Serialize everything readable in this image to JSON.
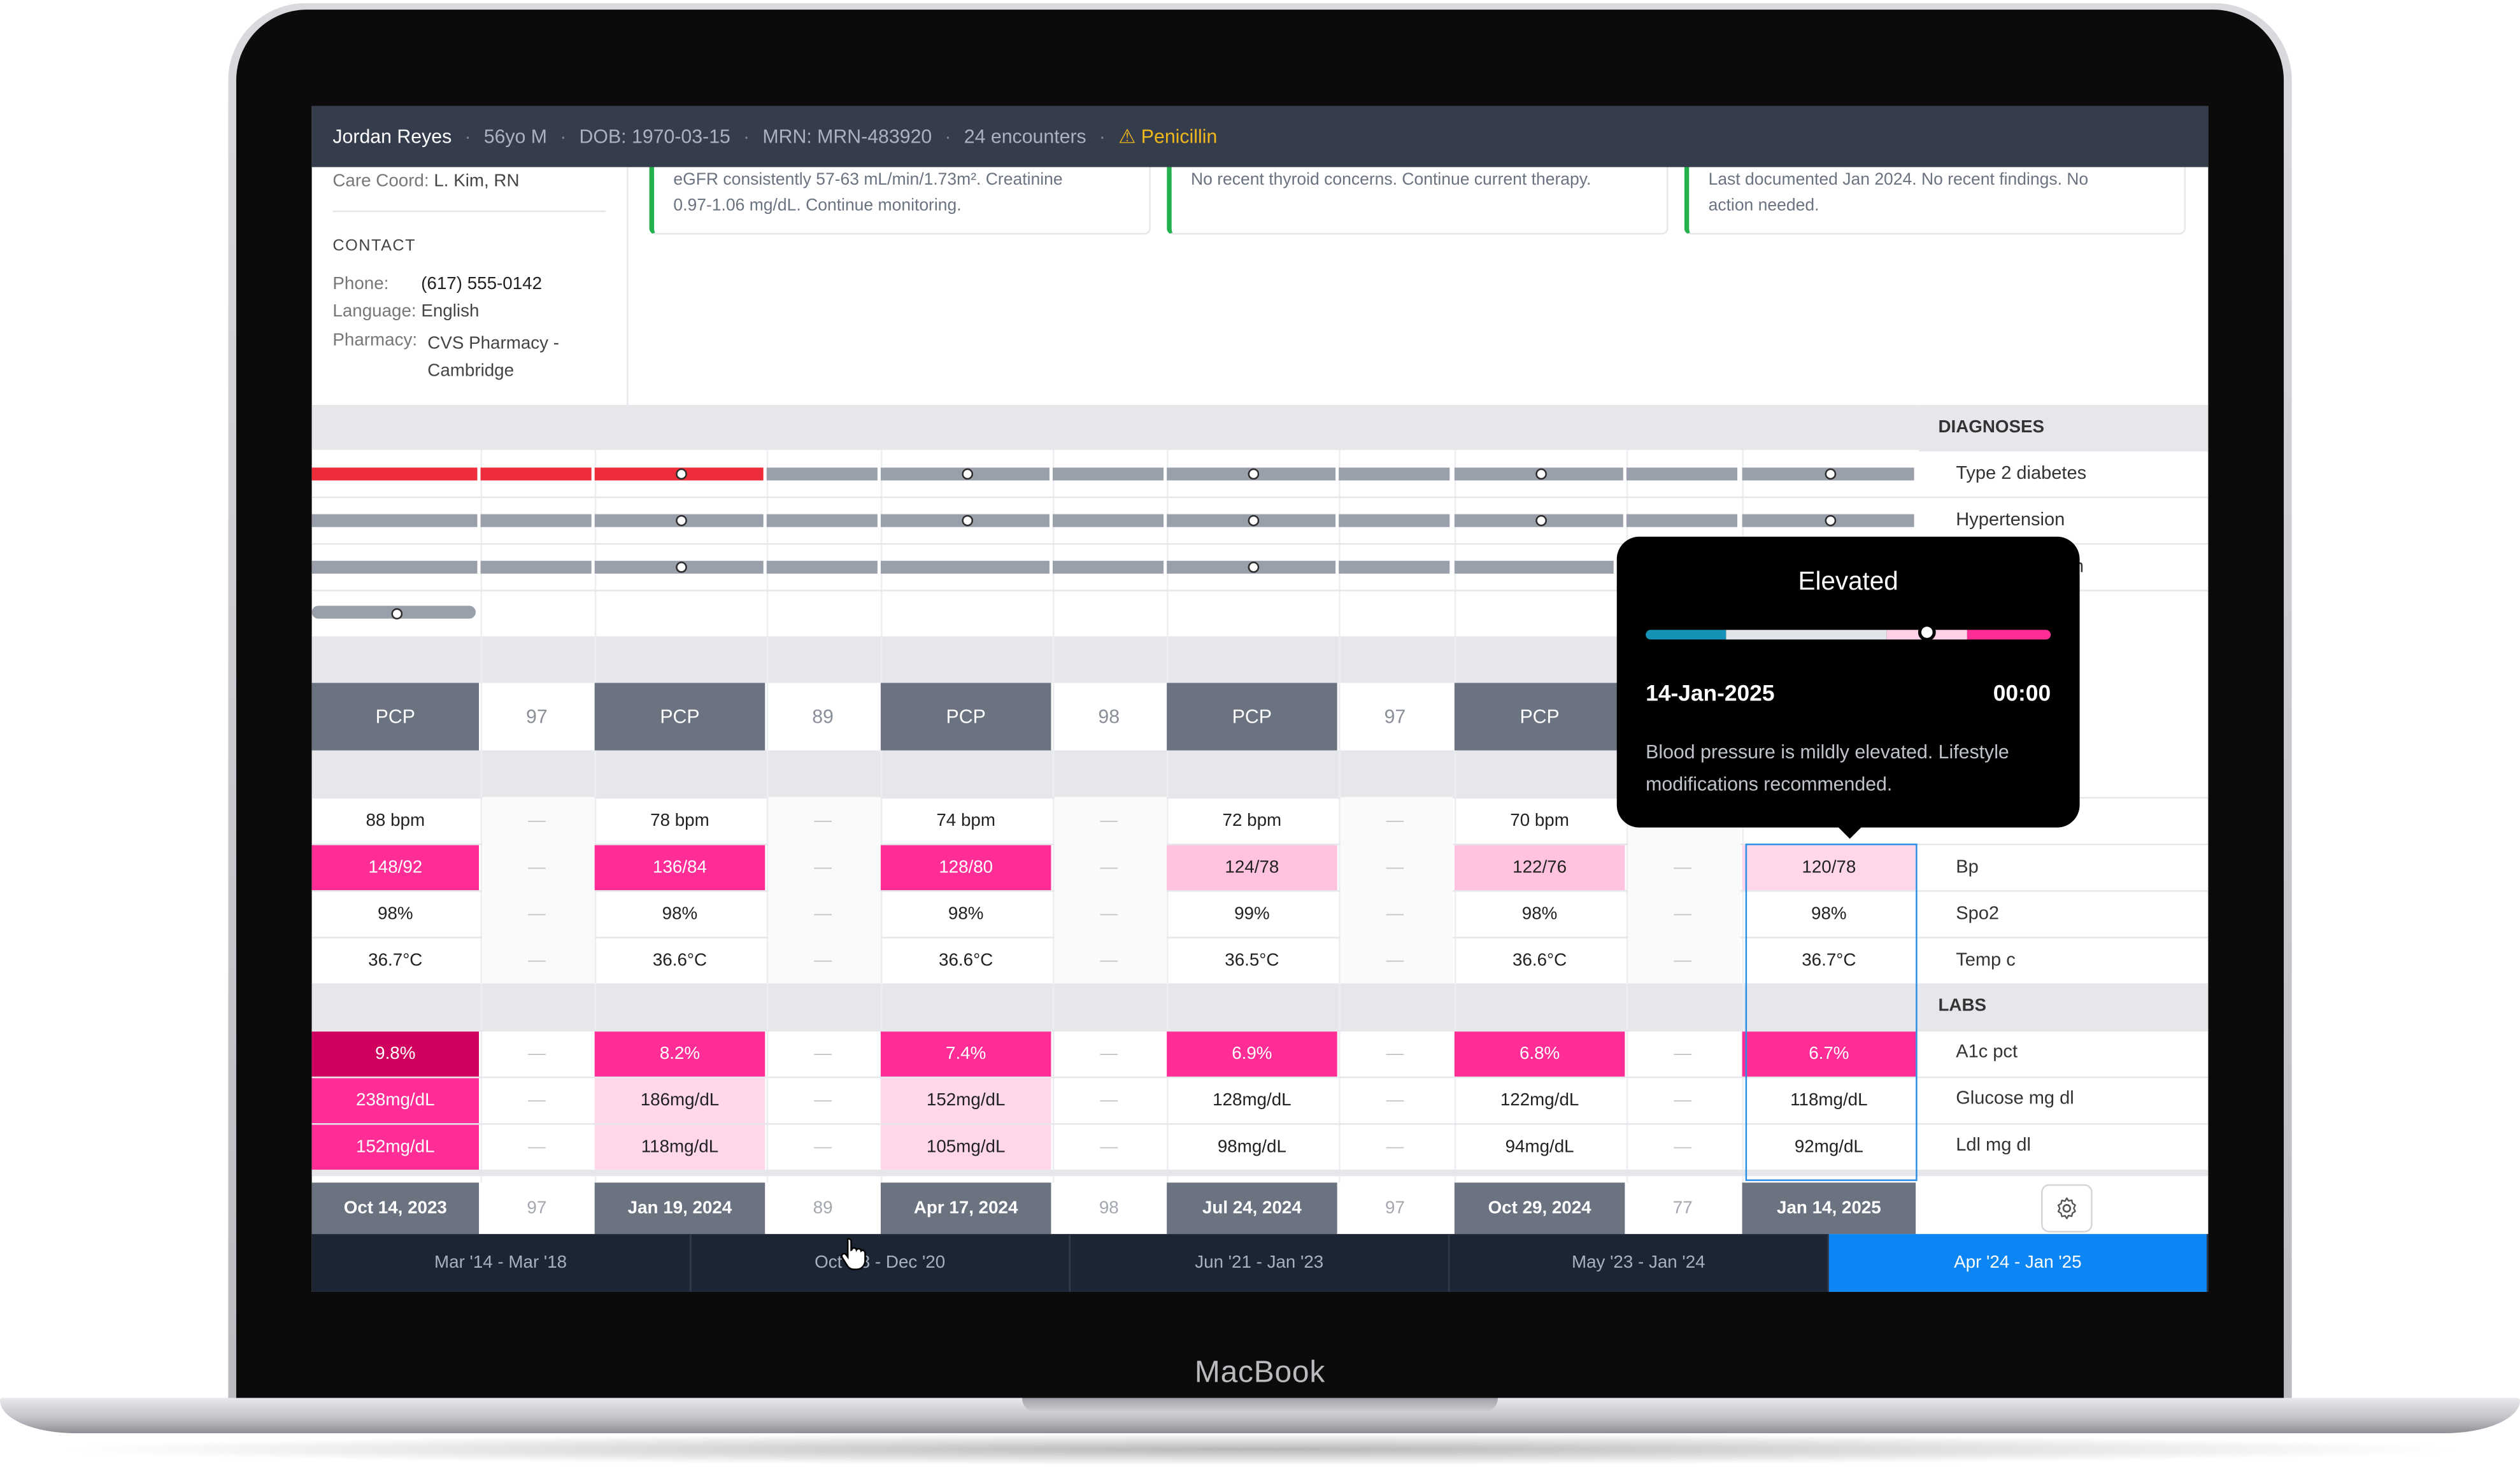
{
  "header": {
    "patient_name": "Jordan Reyes",
    "age_sex": "56yo M",
    "dob": "DOB: 1970-03-15",
    "mrn": "MRN: MRN-483920",
    "encounters": "24 encounters",
    "allergy": "Penicillin"
  },
  "sidebar": {
    "care_coord_label": "Care Coord:",
    "care_coord_value": "L. Kim, RN",
    "contact_heading": "CONTACT",
    "phone_label": "Phone:",
    "phone_value": "(617) 555-0142",
    "language_label": "Language:",
    "language_value": "English",
    "pharmacy_label": "Pharmacy:",
    "pharmacy_value_1": "CVS Pharmacy -",
    "pharmacy_value_2": "Cambridge"
  },
  "cards": [
    {
      "line1": "eGFR consistently 57-63 mL/min/1.73m². Creatinine",
      "line2": "0.97-1.06 mg/dL. Continue monitoring."
    },
    {
      "line1": "No recent thyroid concerns. Continue current therapy.",
      "line2": ""
    },
    {
      "line1": "Last documented Jan 2024. No recent findings. No",
      "line2": "action needed."
    }
  ],
  "sections": {
    "diagnoses": "DIAGNOSES",
    "labs": "LABS"
  },
  "diagnoses": [
    "Type 2 diabetes",
    "Hypertension",
    "m"
  ],
  "encounter_row": [
    "PCP",
    "97",
    "PCP",
    "89",
    "PCP",
    "98",
    "PCP",
    "97",
    "PCP"
  ],
  "vitals": {
    "hr": [
      "88 bpm",
      "—",
      "78 bpm",
      "—",
      "74 bpm",
      "—",
      "72 bpm",
      "—",
      "70 bpm",
      "—",
      "—"
    ],
    "bp": [
      "148/92",
      "—",
      "136/84",
      "—",
      "128/80",
      "—",
      "124/78",
      "—",
      "122/76",
      "—",
      "120/78"
    ],
    "spo2": [
      "98%",
      "—",
      "98%",
      "—",
      "98%",
      "—",
      "99%",
      "—",
      "98%",
      "—",
      "98%"
    ],
    "temp": [
      "36.7°C",
      "—",
      "36.6°C",
      "—",
      "36.6°C",
      "—",
      "36.5°C",
      "—",
      "36.6°C",
      "—",
      "36.7°C"
    ]
  },
  "vital_labels": {
    "bp": "Bp",
    "spo2": "Spo2",
    "temp": "Temp c"
  },
  "labs": {
    "a1c": [
      "9.8%",
      "—",
      "8.2%",
      "—",
      "7.4%",
      "—",
      "6.9%",
      "—",
      "6.8%",
      "—",
      "6.7%"
    ],
    "glucose": [
      "238mg/dL",
      "—",
      "186mg/dL",
      "—",
      "152mg/dL",
      "—",
      "128mg/dL",
      "—",
      "122mg/dL",
      "—",
      "118mg/dL"
    ],
    "ldl": [
      "152mg/dL",
      "—",
      "118mg/dL",
      "—",
      "105mg/dL",
      "—",
      "98mg/dL",
      "—",
      "94mg/dL",
      "—",
      "92mg/dL"
    ]
  },
  "lab_labels": {
    "a1c": "A1c pct",
    "glucose": "Glucose mg dl",
    "ldl": "Ldl mg dl"
  },
  "footer_dates": [
    "Oct 14, 2023",
    "97",
    "Jan 19, 2024",
    "89",
    "Apr 17, 2024",
    "98",
    "Jul 24, 2024",
    "97",
    "Oct 29, 2024",
    "77",
    "Jan 14, 2025"
  ],
  "ranges": [
    "Mar '14 - Mar '18",
    "Oct '18 - Dec '20",
    "Jun '21 - Jan '23",
    "May '23 - Jan '24",
    "Apr '24 - Jan '25"
  ],
  "tooltip": {
    "title": "Elevated",
    "date": "14-Jan-2025",
    "time": "00:00",
    "desc_1": "Blood pressure is mildly elevated. Lifestyle",
    "desc_2": "modifications recommended.",
    "gauge_position": 0.6
  },
  "device_brand": "MacBook",
  "colors": {
    "header_bg": "#353c4b",
    "allergy": "#f1b81a",
    "active_range": "#0d86f5",
    "severe": "#d0005e",
    "high": "#ff2d95",
    "moderate": "#ffc2df",
    "mild": "#ffd6ea",
    "red_bar": "#ee2d3a",
    "card_border": "#22b14c"
  }
}
